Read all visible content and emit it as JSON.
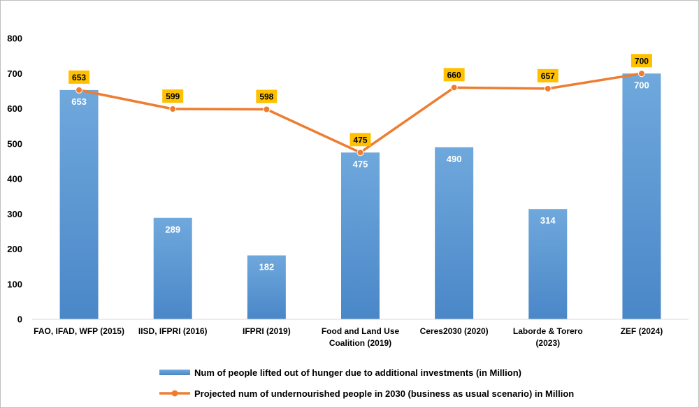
{
  "chart_data": {
    "type": "bar+line",
    "categories": [
      "FAO, IFAD, WFP (2015)",
      "IISD, IFPRI (2016)",
      "IFPRI (2019)",
      "Food and Land Use Coalition (2019)",
      "Ceres2030 (2020)",
      "Laborde & Torero (2023)",
      "ZEF (2024)"
    ],
    "category_lines": [
      [
        "FAO, IFAD, WFP (2015)"
      ],
      [
        "IISD, IFPRI (2016)"
      ],
      [
        "IFPRI (2019)"
      ],
      [
        "Food and Land Use",
        "Coalition (2019)"
      ],
      [
        "Ceres2030 (2020)"
      ],
      [
        "Laborde & Torero",
        "(2023)"
      ],
      [
        "ZEF (2024)"
      ]
    ],
    "series": [
      {
        "name": "Num of people lifted out of hunger due to additional investments (in Million)",
        "type": "bar",
        "color": "#5b9bd5",
        "values": [
          653,
          289,
          182,
          475,
          490,
          314,
          700
        ]
      },
      {
        "name": "Projected num of undernourished people in 2030 (business as usual scenario) in Million",
        "type": "line",
        "color": "#ed7d31",
        "label_bg": "#ffc000",
        "values": [
          653,
          599,
          598,
          475,
          660,
          657,
          700
        ]
      }
    ],
    "ylim": [
      0,
      800
    ],
    "yticks": [
      0,
      100,
      200,
      300,
      400,
      500,
      600,
      700,
      800
    ],
    "grid": false,
    "legend": "bottom",
    "title": "",
    "xlabel": "",
    "ylabel": ""
  }
}
